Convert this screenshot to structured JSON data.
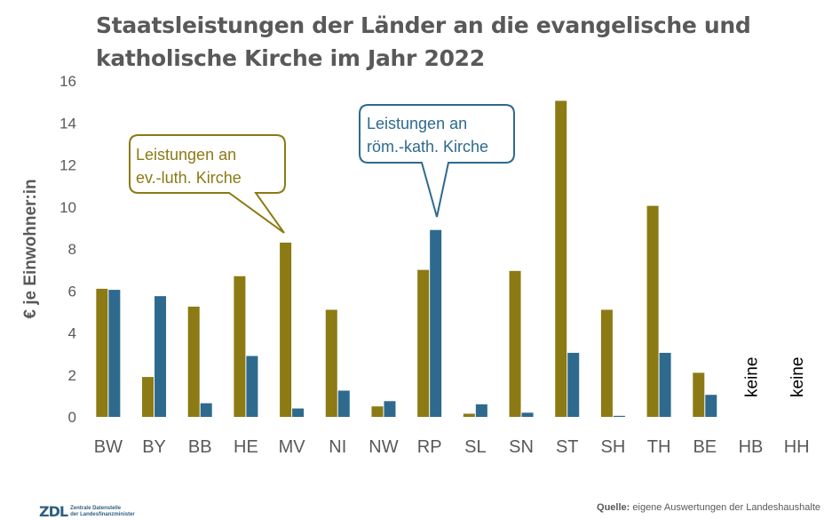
{
  "chart_data": {
    "type": "bar",
    "title_lines": [
      "Staatsleistungen der Länder an die evangelische und",
      "katholische Kirche im Jahr 2022"
    ],
    "ylabel": "€ je Einwohner:in",
    "ylim": [
      0,
      16
    ],
    "yticks": [
      0,
      2,
      4,
      6,
      8,
      10,
      12,
      14,
      16
    ],
    "grid": false,
    "categories": [
      "BW",
      "BY",
      "BB",
      "HE",
      "MV",
      "NI",
      "NW",
      "RP",
      "SL",
      "SN",
      "ST",
      "SH",
      "TH",
      "BE",
      "HB",
      "HH"
    ],
    "series": [
      {
        "values": [
          6.1,
          1.9,
          5.25,
          6.7,
          8.3,
          5.1,
          0.5,
          7.0,
          0.15,
          6.95,
          15.05,
          5.1,
          10.05,
          2.1,
          null,
          null
        ]
      },
      {
        "values": [
          6.05,
          5.75,
          0.65,
          2.9,
          0.4,
          1.25,
          0.75,
          8.9,
          0.6,
          0.2,
          3.05,
          0.05,
          3.05,
          1.05,
          null,
          null
        ]
      }
    ],
    "missing_label": "keine",
    "annotations": [
      {
        "lines": [
          "Leistungen an",
          "ev.-luth. Kirche"
        ]
      },
      {
        "lines": [
          "Leistungen an",
          "röm.-kath. Kirche"
        ]
      }
    ]
  },
  "colors": {
    "series1": "#8c7a14",
    "series2": "#2e6a8e",
    "text": "#595959"
  },
  "footer": {
    "logo_mark": "ZDL",
    "logo_lines": [
      "Zentrale Datenstelle",
      "der Landesfinanzminister"
    ],
    "source_label": "Quelle:",
    "source_text": " eigene Auswertungen der Landeshaushalte"
  }
}
